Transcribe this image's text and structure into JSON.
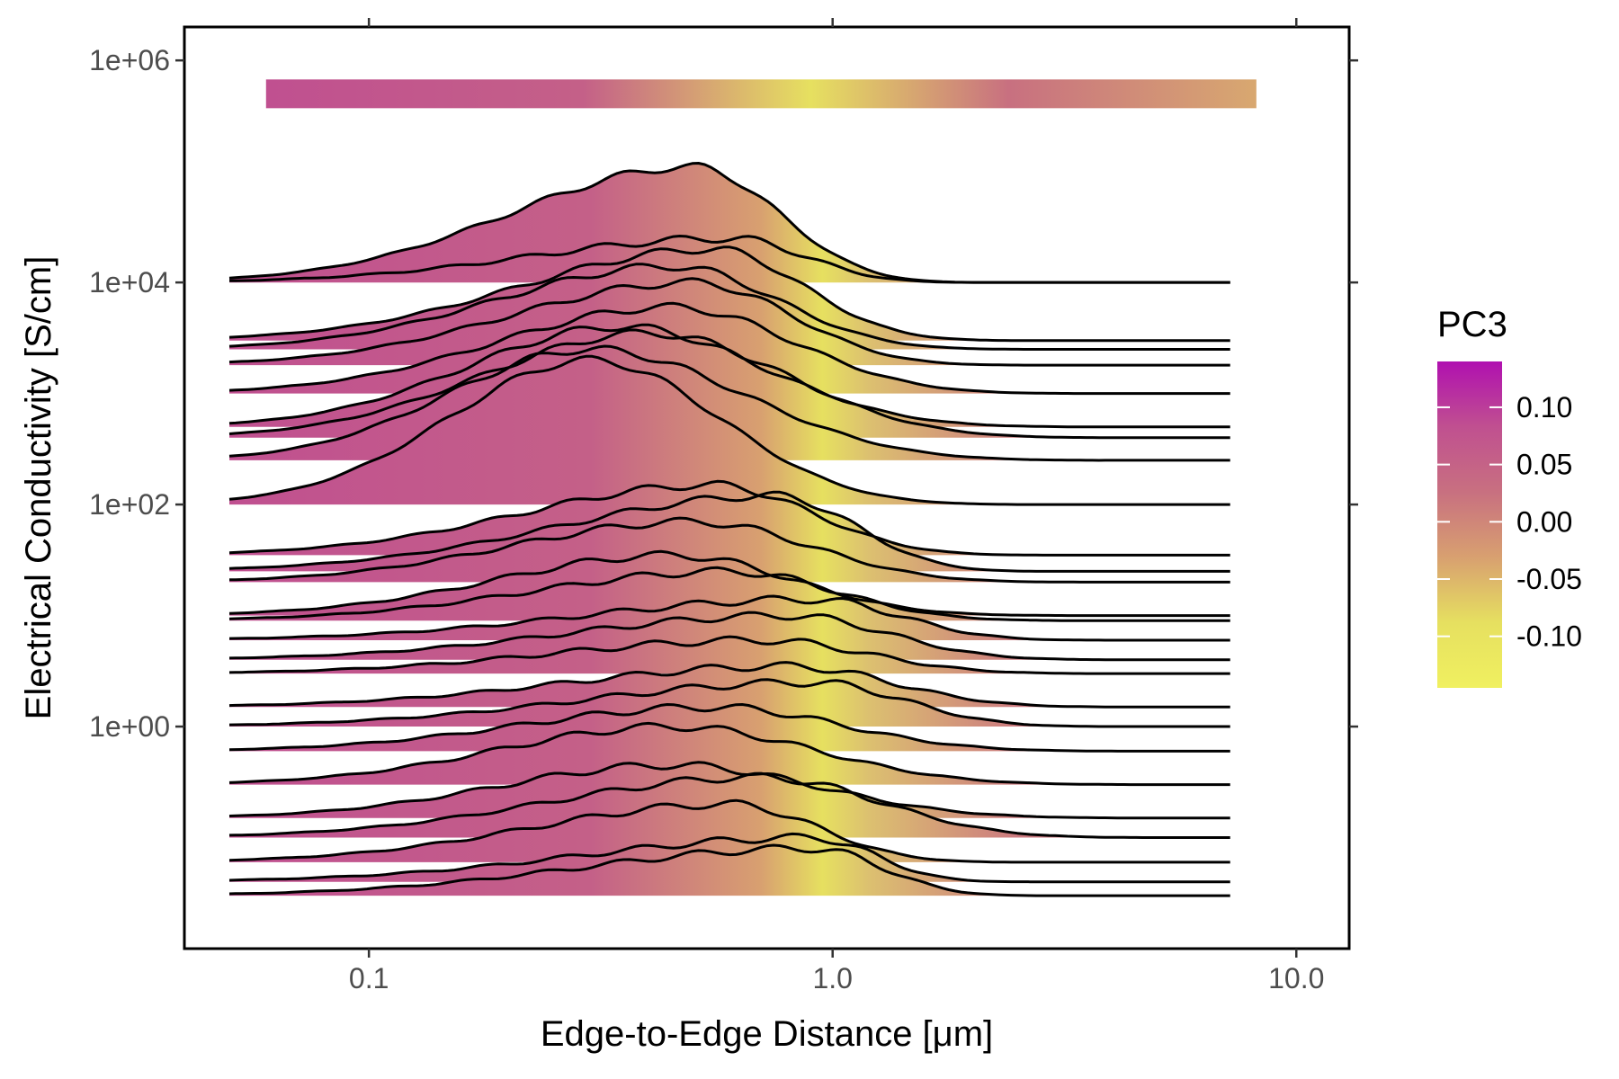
{
  "chart_data": {
    "type": "line",
    "title": "",
    "xlabel": "Edge-to-Edge Distance [μm]",
    "ylabel": "Electrical Conductivity [S/cm]",
    "x_scale": "log",
    "y_scale": "log",
    "xlim": [
      0.04,
      13
    ],
    "ylim": [
      0.01,
      2000000
    ],
    "x_ticks": [
      0.1,
      1.0,
      10.0
    ],
    "x_tick_labels": [
      "0.1",
      "1.0",
      "10.0"
    ],
    "y_ticks": [
      1,
      100,
      10000,
      1000000
    ],
    "y_tick_labels": [
      "1e+00",
      "1e+02",
      "1e+04",
      "1e+06"
    ],
    "grid": false,
    "legend": {
      "title": "PC3",
      "placement": "right",
      "values": [
        0.1,
        0.05,
        0.0,
        -0.05,
        -0.1
      ],
      "labels": [
        "0.10",
        "0.05",
        "0.00",
        "-0.05",
        "-0.10"
      ],
      "range": [
        -0.145,
        0.14
      ],
      "colors_low_to_high": [
        "#f0f060",
        "#e6e060",
        "#d8a070",
        "#c87080",
        "#c05090",
        "#b010b0"
      ]
    },
    "color_band": {
      "x_start": 0.06,
      "x_end": 8.2,
      "y": 500000,
      "colors": [
        "#c05090",
        "#c46088",
        "#e6e060",
        "#c87080",
        "#d8a870"
      ],
      "color_positions": [
        0.0,
        0.32,
        0.55,
        0.75,
        1.0
      ]
    },
    "fill_gradient_x": [
      0.05,
      0.3,
      0.7,
      0.95,
      1.2,
      2.5,
      7.2
    ],
    "fill_gradient_colors": [
      "#c05090",
      "#c46088",
      "#d8a070",
      "#e6e060",
      "#dcc070",
      "#cc7a80",
      "#c87080"
    ],
    "series": [
      {
        "baseline": 10000,
        "peak_x": 0.5,
        "peak_y": 110000,
        "x_end": 2.1
      },
      {
        "baseline": 10000,
        "peak_x": 0.6,
        "peak_y": 25000,
        "x_end": 2.1
      },
      {
        "baseline": 3000,
        "peak_x": 0.55,
        "peak_y": 20000,
        "x_end": 2.5
      },
      {
        "baseline": 2500,
        "peak_x": 0.45,
        "peak_y": 14000,
        "x_end": 2.6
      },
      {
        "baseline": 1800,
        "peak_x": 0.5,
        "peak_y": 10000,
        "x_end": 2.6
      },
      {
        "baseline": 1000,
        "peak_x": 0.45,
        "peak_y": 6000,
        "x_end": 3.4
      },
      {
        "baseline": 500,
        "peak_x": 0.35,
        "peak_y": 4000,
        "x_end": 3.6
      },
      {
        "baseline": 400,
        "peak_x": 0.4,
        "peak_y": 3500,
        "x_end": 4.0
      },
      {
        "baseline": 250,
        "peak_x": 0.3,
        "peak_y": 2500,
        "x_end": 3.8
      },
      {
        "baseline": 100,
        "peak_x": 0.3,
        "peak_y": 2000,
        "x_end": 2.6
      },
      {
        "baseline": 35,
        "peak_x": 0.55,
        "peak_y": 150,
        "x_end": 2.9
      },
      {
        "baseline": 25,
        "peak_x": 0.75,
        "peak_y": 120,
        "x_end": 2.9
      },
      {
        "baseline": 20,
        "peak_x": 0.5,
        "peak_y": 70,
        "x_end": 3.5
      },
      {
        "baseline": 10,
        "peak_x": 0.45,
        "peak_y": 35,
        "x_end": 3.3
      },
      {
        "baseline": 9,
        "peak_x": 0.6,
        "peak_y": 25,
        "x_end": 3.5
      },
      {
        "baseline": 6,
        "peak_x": 0.9,
        "peak_y": 14,
        "x_end": 3.9
      },
      {
        "baseline": 4,
        "peak_x": 0.8,
        "peak_y": 10,
        "x_end": 4.2
      },
      {
        "baseline": 3,
        "peak_x": 0.7,
        "peak_y": 6,
        "x_end": 4.1
      },
      {
        "baseline": 1.5,
        "peak_x": 0.8,
        "peak_y": 3.5,
        "x_end": 4.5
      },
      {
        "baseline": 1.0,
        "peak_x": 0.9,
        "peak_y": 2.5,
        "x_end": 4.2
      },
      {
        "baseline": 0.6,
        "peak_x": 0.55,
        "peak_y": 1.5,
        "x_end": 4.6
      },
      {
        "baseline": 0.3,
        "peak_x": 0.45,
        "peak_y": 1.0,
        "x_end": 4.8
      },
      {
        "baseline": 0.15,
        "peak_x": 0.45,
        "peak_y": 0.45,
        "x_end": 5.0
      },
      {
        "baseline": 0.1,
        "peak_x": 0.7,
        "peak_y": 0.35,
        "x_end": 5.0
      },
      {
        "baseline": 0.06,
        "peak_x": 0.6,
        "peak_y": 0.2,
        "x_end": 2.6
      },
      {
        "baseline": 0.04,
        "peak_x": 0.9,
        "peak_y": 0.1,
        "x_end": 2.6
      },
      {
        "baseline": 0.03,
        "peak_x": 0.9,
        "peak_y": 0.08,
        "x_end": 2.9
      }
    ]
  }
}
